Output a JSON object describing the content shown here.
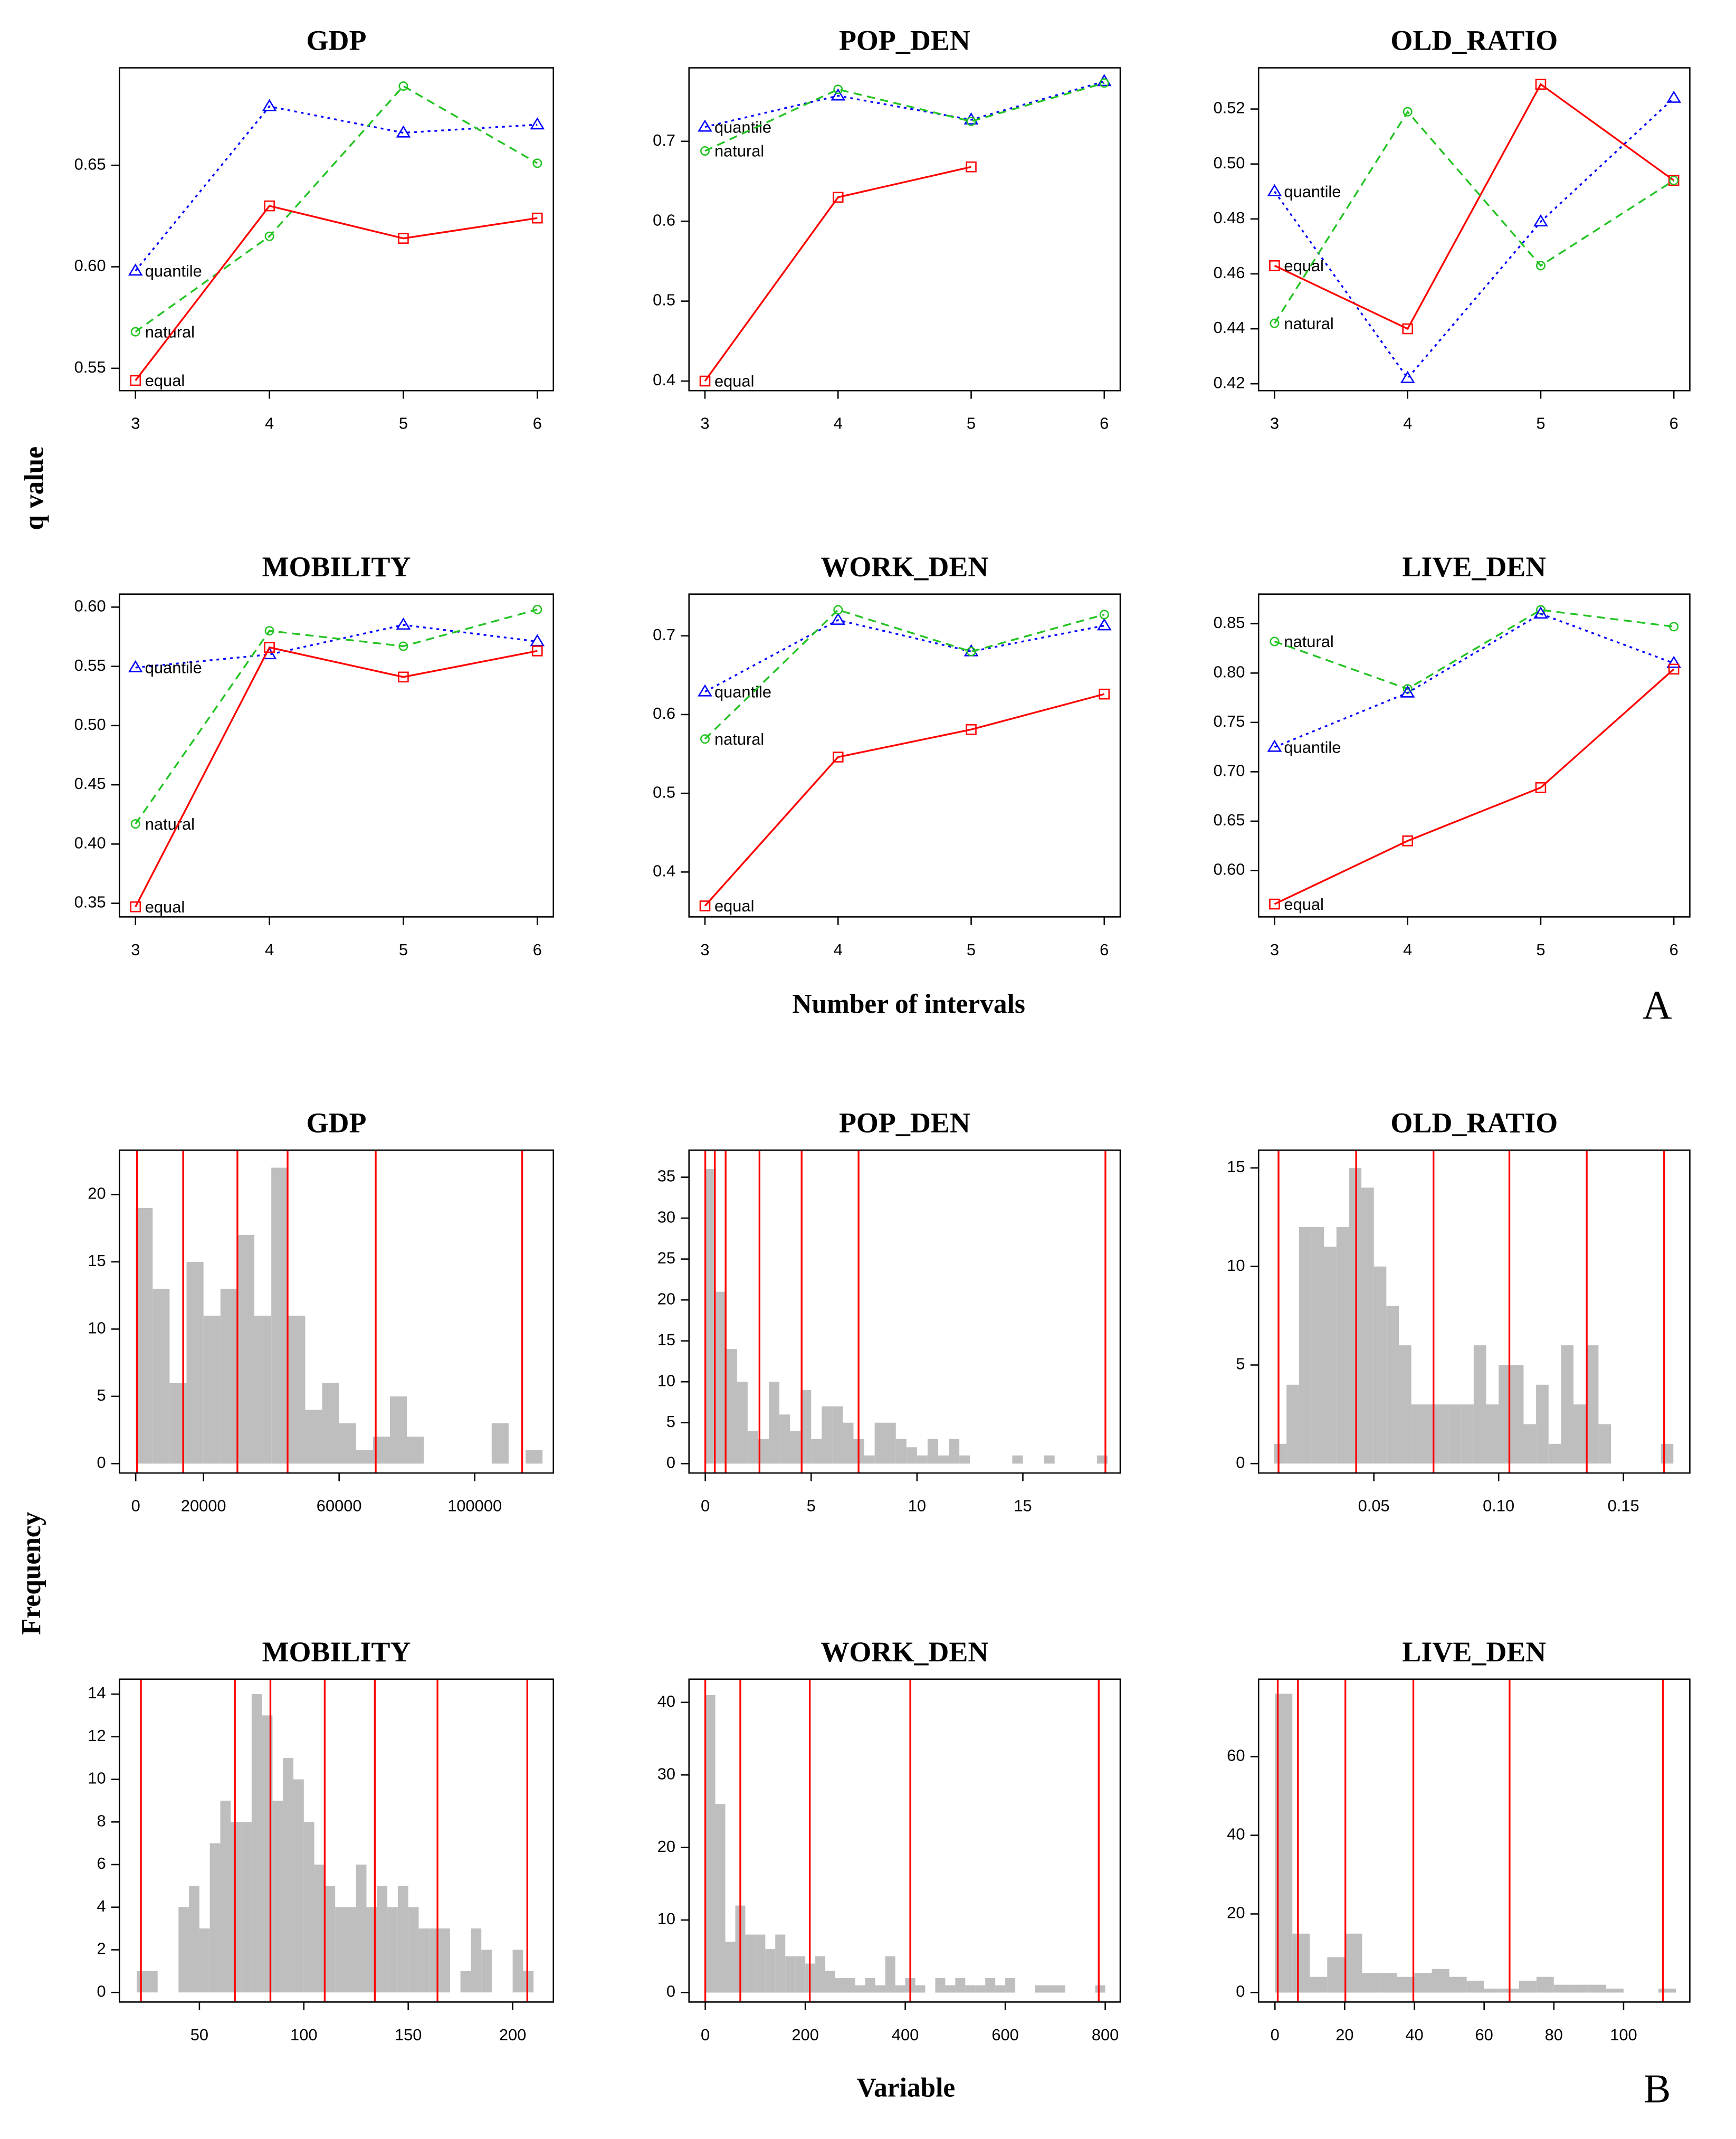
{
  "figure": {
    "panel_a": {
      "ylabel": "q value",
      "xlabel": "Number of intervals",
      "tag": "A"
    },
    "panel_b": {
      "ylabel": "Frequency",
      "xlabel": "Variable",
      "tag": "B"
    }
  },
  "chart_data": [
    {
      "type": "line",
      "title": "GDP",
      "x": [
        3,
        4,
        5,
        6
      ],
      "xlim": [
        2.88,
        6.12
      ],
      "xticks": [
        3,
        4,
        5,
        6
      ],
      "ylim": [
        0.539,
        0.698
      ],
      "yticks": [
        0.55,
        {
          "value": 0.6,
          "label": "0.60"
        },
        0.65
      ],
      "series": [
        {
          "name": "quantile",
          "color": "#0000ff",
          "dash": "dotted",
          "marker": "triangle",
          "values": [
            0.598,
            0.679,
            0.666,
            0.67
          ]
        },
        {
          "name": "natural",
          "color": "#22c322",
          "dash": "dashed",
          "marker": "circle",
          "values": [
            0.568,
            0.615,
            0.689,
            0.651
          ]
        },
        {
          "name": "equal",
          "color": "#ff0000",
          "dash": "solid",
          "marker": "square",
          "values": [
            0.544,
            0.63,
            0.614,
            0.624
          ]
        }
      ]
    },
    {
      "type": "line",
      "title": "POP_DEN",
      "x": [
        3,
        4,
        5,
        6
      ],
      "xlim": [
        2.88,
        6.12
      ],
      "xticks": [
        3,
        4,
        5,
        6
      ],
      "ylim": [
        0.388,
        0.792
      ],
      "yticks": [
        0.4,
        0.5,
        0.6,
        0.7
      ],
      "series": [
        {
          "name": "quantile",
          "color": "#0000ff",
          "dash": "dotted",
          "marker": "triangle",
          "values": [
            0.718,
            0.757,
            0.727,
            0.775
          ]
        },
        {
          "name": "natural",
          "color": "#22c322",
          "dash": "dashed",
          "marker": "circle",
          "values": [
            0.688,
            0.765,
            0.725,
            0.773
          ]
        },
        {
          "name": "equal",
          "color": "#ff0000",
          "dash": "solid",
          "marker": "square",
          "values": [
            0.4,
            0.63,
            0.668,
            null
          ]
        }
      ]
    },
    {
      "type": "line",
      "title": "OLD_RATIO",
      "x": [
        3,
        4,
        5,
        6
      ],
      "xlim": [
        2.88,
        6.12
      ],
      "xticks": [
        3,
        4,
        5,
        6
      ],
      "ylim": [
        0.4175,
        0.535
      ],
      "yticks": [
        0.42,
        0.44,
        0.46,
        0.48,
        {
          "value": 0.5,
          "label": "0.50"
        },
        0.52
      ],
      "series": [
        {
          "name": "quantile",
          "color": "#0000ff",
          "dash": "dotted",
          "marker": "triangle",
          "values": [
            0.49,
            0.422,
            0.479,
            0.524
          ]
        },
        {
          "name": "equal",
          "color": "#ff0000",
          "dash": "solid",
          "marker": "square",
          "values": [
            0.463,
            0.44,
            0.529,
            0.494
          ]
        },
        {
          "name": "natural",
          "color": "#22c322",
          "dash": "dashed",
          "marker": "circle",
          "values": [
            0.442,
            0.519,
            0.463,
            0.494
          ]
        }
      ]
    },
    {
      "type": "line",
      "title": "MOBILITY",
      "x": [
        3,
        4,
        5,
        6
      ],
      "xlim": [
        2.88,
        6.12
      ],
      "xticks": [
        3,
        4,
        5,
        6
      ],
      "ylim": [
        0.3385,
        0.611
      ],
      "yticks": [
        0.35,
        {
          "value": 0.4,
          "label": "0.40"
        },
        0.45,
        {
          "value": 0.5,
          "label": "0.50"
        },
        0.55,
        {
          "value": 0.6,
          "label": "0.60"
        }
      ],
      "series": [
        {
          "name": "quantile",
          "color": "#0000ff",
          "dash": "dotted",
          "marker": "triangle",
          "values": [
            0.549,
            0.56,
            0.585,
            0.571
          ]
        },
        {
          "name": "natural",
          "color": "#22c322",
          "dash": "dashed",
          "marker": "circle",
          "values": [
            0.417,
            0.58,
            0.567,
            0.598
          ]
        },
        {
          "name": "equal",
          "color": "#ff0000",
          "dash": "solid",
          "marker": "square",
          "values": [
            0.347,
            0.566,
            0.541,
            0.563
          ]
        }
      ]
    },
    {
      "type": "line",
      "title": "WORK_DEN",
      "x": [
        3,
        4,
        5,
        6
      ],
      "xlim": [
        2.88,
        6.12
      ],
      "xticks": [
        3,
        4,
        5,
        6
      ],
      "ylim": [
        0.343,
        0.753
      ],
      "yticks": [
        0.4,
        0.5,
        0.6,
        0.7
      ],
      "series": [
        {
          "name": "quantile",
          "color": "#0000ff",
          "dash": "dotted",
          "marker": "triangle",
          "values": [
            0.629,
            0.72,
            0.68,
            0.713
          ]
        },
        {
          "name": "natural",
          "color": "#22c322",
          "dash": "dashed",
          "marker": "circle",
          "values": [
            0.569,
            0.733,
            0.68,
            0.727
          ]
        },
        {
          "name": "equal",
          "color": "#ff0000",
          "dash": "solid",
          "marker": "square",
          "values": [
            0.357,
            0.546,
            0.581,
            0.626
          ]
        }
      ]
    },
    {
      "type": "line",
      "title": "LIVE_DEN",
      "x": [
        3,
        4,
        5,
        6
      ],
      "xlim": [
        2.88,
        6.12
      ],
      "xticks": [
        3,
        4,
        5,
        6
      ],
      "ylim": [
        0.553,
        0.88
      ],
      "yticks": [
        {
          "value": 0.6,
          "label": "0.60"
        },
        0.65,
        {
          "value": 0.7,
          "label": "0.70"
        },
        0.75,
        {
          "value": 0.8,
          "label": "0.80"
        },
        0.85
      ],
      "series": [
        {
          "name": "natural",
          "color": "#22c322",
          "dash": "dashed",
          "marker": "circle",
          "values": [
            0.832,
            0.784,
            0.864,
            0.847
          ]
        },
        {
          "name": "quantile",
          "color": "#0000ff",
          "dash": "dotted",
          "marker": "triangle",
          "values": [
            0.725,
            0.78,
            0.86,
            0.81
          ]
        },
        {
          "name": "equal",
          "color": "#ff0000",
          "dash": "solid",
          "marker": "square",
          "values": [
            0.566,
            0.63,
            0.684,
            0.804
          ]
        }
      ]
    },
    {
      "type": "histogram",
      "title": "GDP",
      "color": "#bebebe",
      "break_color": "#ff0000",
      "bins": [
        0,
        5000,
        10000,
        15000,
        20000,
        25000,
        30000,
        35000,
        40000,
        45000,
        50000,
        55000,
        60000,
        65000,
        70000,
        75000,
        80000,
        85000,
        90000,
        95000,
        100000,
        105000,
        110000,
        115000,
        120000
      ],
      "values": [
        19,
        13,
        6,
        15,
        11,
        13,
        17,
        11,
        22,
        11,
        4,
        6,
        3,
        1,
        2,
        5,
        2,
        0,
        0,
        0,
        0,
        3,
        0,
        1
      ],
      "breaks": [
        400,
        14000,
        30000,
        44800,
        70800,
        114000
      ],
      "xlim": [
        -4800,
        123200
      ],
      "xticks": [
        0,
        20000,
        60000,
        100000
      ],
      "ylim": [
        -0.7,
        23.3
      ],
      "yticks": [
        0,
        5,
        10,
        15,
        20
      ]
    },
    {
      "type": "histogram",
      "title": "POP_DEN",
      "color": "#bebebe",
      "break_color": "#ff0000",
      "bins": [
        0,
        0.5,
        1,
        1.5,
        2,
        2.5,
        3,
        3.5,
        4,
        4.5,
        5,
        5.5,
        6,
        6.5,
        7,
        7.5,
        8,
        8.5,
        9,
        9.5,
        10,
        10.5,
        11,
        11.5,
        12,
        12.5,
        13,
        13.5,
        14,
        14.5,
        15,
        15.5,
        16,
        16.5,
        17,
        17.5,
        18,
        18.5,
        19
      ],
      "values": [
        36,
        21,
        14,
        10,
        4,
        3,
        10,
        6,
        4,
        9,
        3,
        7,
        7,
        5,
        3,
        1,
        5,
        5,
        3,
        2,
        1,
        3,
        1,
        3,
        1,
        0,
        0,
        0,
        0,
        1,
        0,
        0,
        1,
        0,
        0,
        0,
        0,
        1
      ],
      "breaks": [
        0,
        0.45,
        0.96,
        2.56,
        4.55,
        7.24,
        18.9
      ],
      "xlim": [
        -0.77,
        19.6
      ],
      "xticks": [
        0,
        5,
        10,
        15
      ],
      "ylim": [
        -1.15,
        38.3
      ],
      "yticks": [
        0,
        5,
        10,
        15,
        20,
        25,
        30,
        35
      ]
    },
    {
      "type": "histogram",
      "title": "OLD_RATIO",
      "color": "#bebebe",
      "break_color": "#ff0000",
      "bins": [
        0.01,
        0.015,
        0.02,
        0.025,
        0.03,
        0.035,
        0.04,
        0.045,
        0.05,
        0.055,
        0.06,
        0.065,
        0.07,
        0.075,
        0.08,
        0.085,
        0.09,
        0.095,
        0.1,
        0.105,
        0.11,
        0.115,
        0.12,
        0.125,
        0.13,
        0.135,
        0.14,
        0.145,
        0.15,
        0.155,
        0.16,
        0.165,
        0.17
      ],
      "values": [
        1,
        4,
        12,
        12,
        11,
        12,
        15,
        14,
        10,
        8,
        6,
        3,
        3,
        3,
        3,
        3,
        6,
        3,
        5,
        5,
        2,
        4,
        1,
        6,
        3,
        6,
        2,
        0,
        0,
        0,
        0,
        1
      ],
      "breaks": [
        0.0118,
        0.0429,
        0.0739,
        0.1043,
        0.1353,
        0.1663
      ],
      "xlim": [
        0.0038,
        0.1766
      ],
      "xticks": [
        0.05,
        {
          "value": 0.1,
          "label": "0.10"
        },
        0.15
      ],
      "ylim": [
        -0.48,
        15.9
      ],
      "yticks": [
        0,
        5,
        10,
        15
      ]
    },
    {
      "type": "histogram",
      "title": "MOBILITY",
      "color": "#bebebe",
      "break_color": "#ff0000",
      "bins": [
        20,
        25,
        30,
        35,
        40,
        45,
        50,
        55,
        60,
        65,
        70,
        75,
        80,
        85,
        90,
        95,
        100,
        105,
        110,
        115,
        120,
        125,
        130,
        135,
        140,
        145,
        150,
        155,
        160,
        165,
        170,
        175,
        180,
        185,
        190,
        195,
        200,
        205,
        210
      ],
      "values": [
        1,
        1,
        0,
        0,
        4,
        5,
        3,
        7,
        9,
        8,
        8,
        14,
        13,
        9,
        11,
        10,
        8,
        6,
        5,
        4,
        4,
        6,
        4,
        5,
        4,
        5,
        4,
        3,
        3,
        3,
        0,
        1,
        3,
        2,
        0,
        0,
        2,
        1
      ],
      "breaks": [
        22,
        67,
        84,
        110,
        134,
        164,
        207
      ],
      "xlim": [
        11.7,
        219.5
      ],
      "xticks": [
        50,
        100,
        150,
        200
      ],
      "ylim": [
        -0.45,
        14.7
      ],
      "yticks": [
        0,
        2,
        4,
        6,
        8,
        10,
        12,
        14
      ]
    },
    {
      "type": "histogram",
      "title": "WORK_DEN",
      "color": "#bebebe",
      "break_color": "#ff0000",
      "bins": [
        0,
        20,
        40,
        60,
        80,
        100,
        120,
        140,
        160,
        180,
        200,
        220,
        240,
        260,
        280,
        300,
        320,
        340,
        360,
        380,
        400,
        420,
        440,
        460,
        480,
        500,
        520,
        540,
        560,
        580,
        600,
        620,
        640,
        660,
        680,
        700,
        720,
        740,
        760,
        780,
        800
      ],
      "values": [
        41,
        26,
        7,
        12,
        8,
        8,
        6,
        8,
        5,
        5,
        4,
        5,
        3,
        2,
        2,
        1,
        2,
        1,
        5,
        1,
        2,
        1,
        0,
        2,
        1,
        2,
        1,
        1,
        2,
        1,
        2,
        0,
        0,
        1,
        1,
        1,
        0,
        0,
        0,
        1
      ],
      "breaks": [
        0,
        70,
        209,
        410,
        787
      ],
      "xlim": [
        -32.6,
        830
      ],
      "xticks": [
        0,
        200,
        400,
        600,
        800
      ],
      "ylim": [
        -1.3,
        43.2
      ],
      "yticks": [
        0,
        10,
        20,
        30,
        40
      ]
    },
    {
      "type": "histogram",
      "title": "LIVE_DEN",
      "color": "#bebebe",
      "break_color": "#ff0000",
      "bins": [
        0,
        5,
        10,
        15,
        20,
        25,
        30,
        35,
        40,
        45,
        50,
        55,
        60,
        65,
        70,
        75,
        80,
        85,
        90,
        95,
        100,
        105,
        110,
        115
      ],
      "values": [
        76,
        15,
        4,
        9,
        15,
        5,
        5,
        4,
        5,
        6,
        4,
        3,
        1,
        1,
        3,
        4,
        2,
        2,
        2,
        1,
        0,
        0,
        1
      ],
      "breaks": [
        0.8,
        6.6,
        20.2,
        39.7,
        67.3,
        111.3
      ],
      "xlim": [
        -4.7,
        119
      ],
      "xticks": [
        0,
        20,
        40,
        60,
        80,
        100
      ],
      "ylim": [
        -2.4,
        79.7
      ],
      "yticks": [
        0,
        20,
        40,
        60
      ]
    }
  ]
}
